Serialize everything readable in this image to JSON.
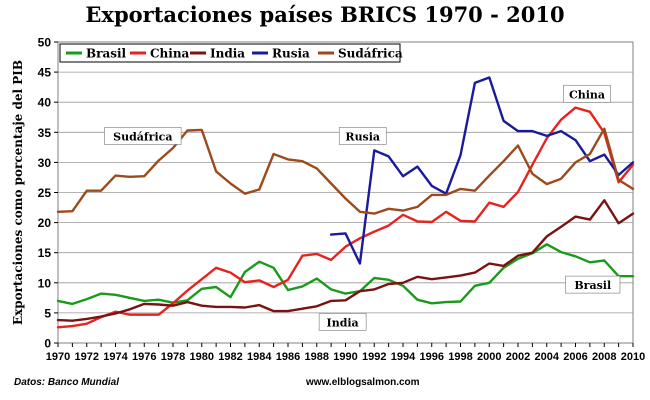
{
  "chart_data": {
    "type": "line",
    "title": "Exportaciones países BRICS 1970 - 2010",
    "ylabel": "Exportaciones como porcentaje del PIB",
    "xlabel": "",
    "xlim": [
      1970,
      2010
    ],
    "ylim": [
      0,
      50
    ],
    "x_ticks": [
      1970,
      1972,
      1974,
      1976,
      1978,
      1980,
      1982,
      1984,
      1986,
      1988,
      1990,
      1992,
      1994,
      1996,
      1998,
      2000,
      2002,
      2004,
      2006,
      2008,
      2010
    ],
    "y_ticks": [
      0,
      5,
      10,
      15,
      20,
      25,
      30,
      35,
      40,
      45,
      50
    ],
    "grid": true,
    "legend_position": "top-left",
    "series": [
      {
        "name": "Brasil",
        "color": "#1a9a1a",
        "x": [
          1970,
          1971,
          1972,
          1973,
          1974,
          1975,
          1976,
          1977,
          1978,
          1979,
          1980,
          1981,
          1982,
          1983,
          1984,
          1985,
          1986,
          1987,
          1988,
          1989,
          1990,
          1991,
          1992,
          1993,
          1994,
          1995,
          1996,
          1997,
          1998,
          1999,
          2000,
          2001,
          2002,
          2003,
          2004,
          2005,
          2006,
          2007,
          2008,
          2009,
          2010
        ],
        "values": [
          7.0,
          6.5,
          7.3,
          8.2,
          8.0,
          7.5,
          7.0,
          7.2,
          6.7,
          7.1,
          9.0,
          9.3,
          7.6,
          11.8,
          13.5,
          12.5,
          8.8,
          9.4,
          10.7,
          8.9,
          8.2,
          8.6,
          10.8,
          10.5,
          9.5,
          7.2,
          6.6,
          6.8,
          6.9,
          9.5,
          10.0,
          12.5,
          14.0,
          14.9,
          16.4,
          15.1,
          14.4,
          13.4,
          13.7,
          11.1,
          11.1
        ]
      },
      {
        "name": "China",
        "color": "#e8231f",
        "x": [
          1970,
          1971,
          1972,
          1973,
          1974,
          1975,
          1976,
          1977,
          1978,
          1979,
          1980,
          1981,
          1982,
          1983,
          1984,
          1985,
          1986,
          1987,
          1988,
          1989,
          1990,
          1991,
          1992,
          1993,
          1994,
          1995,
          1996,
          1997,
          1998,
          1999,
          2000,
          2001,
          2002,
          2003,
          2004,
          2005,
          2006,
          2007,
          2008,
          2009,
          2010
        ],
        "values": [
          2.6,
          2.8,
          3.2,
          4.3,
          5.2,
          4.7,
          4.7,
          4.7,
          6.6,
          8.7,
          10.6,
          12.5,
          11.7,
          10.1,
          10.4,
          9.3,
          10.5,
          14.5,
          14.8,
          13.8,
          16.0,
          17.4,
          18.5,
          19.5,
          21.3,
          20.2,
          20.1,
          21.8,
          20.3,
          20.2,
          23.3,
          22.6,
          25.1,
          29.6,
          34.0,
          37.1,
          39.1,
          38.4,
          34.9,
          26.7,
          29.6
        ]
      },
      {
        "name": "India",
        "color": "#7b1212",
        "x": [
          1970,
          1971,
          1972,
          1973,
          1974,
          1975,
          1976,
          1977,
          1978,
          1979,
          1980,
          1981,
          1982,
          1983,
          1984,
          1985,
          1986,
          1987,
          1988,
          1989,
          1990,
          1991,
          1992,
          1993,
          1994,
          1995,
          1996,
          1997,
          1998,
          1999,
          2000,
          2001,
          2002,
          2003,
          2004,
          2005,
          2006,
          2007,
          2008,
          2009,
          2010
        ],
        "values": [
          3.8,
          3.7,
          4.0,
          4.4,
          4.9,
          5.6,
          6.5,
          6.4,
          6.2,
          6.8,
          6.2,
          6.0,
          6.0,
          5.9,
          6.3,
          5.3,
          5.3,
          5.7,
          6.1,
          7.0,
          7.1,
          8.6,
          8.9,
          9.8,
          10.0,
          11.0,
          10.6,
          10.9,
          11.2,
          11.7,
          13.2,
          12.8,
          14.5,
          15.0,
          17.7,
          19.3,
          21.0,
          20.5,
          23.7,
          19.9,
          21.5
        ]
      },
      {
        "name": "Rusia",
        "color": "#1a1a9c",
        "x": [
          1989,
          1990,
          1991,
          1992,
          1993,
          1994,
          1995,
          1996,
          1997,
          1998,
          1999,
          2000,
          2001,
          2002,
          2003,
          2004,
          2005,
          2006,
          2007,
          2008,
          2009,
          2010
        ],
        "values": [
          18.0,
          18.2,
          13.2,
          32.0,
          31.0,
          27.7,
          29.3,
          26.1,
          24.8,
          31.2,
          43.2,
          44.1,
          36.9,
          35.2,
          35.2,
          34.4,
          35.2,
          33.7,
          30.2,
          31.3,
          27.9,
          30.0
        ]
      },
      {
        "name": "Sudáfrica",
        "color": "#9c4a1c",
        "x": [
          1970,
          1971,
          1972,
          1973,
          1974,
          1975,
          1976,
          1977,
          1978,
          1979,
          1980,
          1981,
          1982,
          1983,
          1984,
          1985,
          1986,
          1987,
          1988,
          1989,
          1990,
          1991,
          1992,
          1993,
          1994,
          1995,
          1996,
          1997,
          1998,
          1999,
          2000,
          2001,
          2002,
          2003,
          2004,
          2005,
          2006,
          2007,
          2008,
          2009,
          2010
        ],
        "values": [
          21.8,
          21.9,
          25.3,
          25.3,
          27.8,
          27.6,
          27.7,
          30.3,
          32.4,
          35.3,
          35.4,
          28.5,
          26.5,
          24.8,
          25.5,
          31.4,
          30.5,
          30.2,
          29.0,
          26.5,
          24.0,
          21.8,
          21.5,
          22.3,
          22.0,
          22.6,
          24.6,
          24.6,
          25.6,
          25.3,
          27.8,
          30.2,
          32.8,
          28.1,
          26.4,
          27.3,
          30.0,
          31.4,
          35.6,
          27.1,
          25.6
        ]
      }
    ],
    "annotations": [
      {
        "text": "Sudáfrica",
        "x": 1975.9,
        "y": 34.4,
        "series": "Sudáfrica"
      },
      {
        "text": "Rusia",
        "x": 1991.2,
        "y": 34.4,
        "series": "Rusia"
      },
      {
        "text": "China",
        "x": 2006.8,
        "y": 41.4,
        "series": "China"
      },
      {
        "text": "Brasil",
        "x": 2007.2,
        "y": 9.7,
        "series": "Brasil"
      },
      {
        "text": "India",
        "x": 1989.8,
        "y": 3.5,
        "series": "India"
      }
    ]
  },
  "footer": {
    "source": "Datos: Banco Mundial",
    "website": "www.elblogsalmon.com"
  }
}
